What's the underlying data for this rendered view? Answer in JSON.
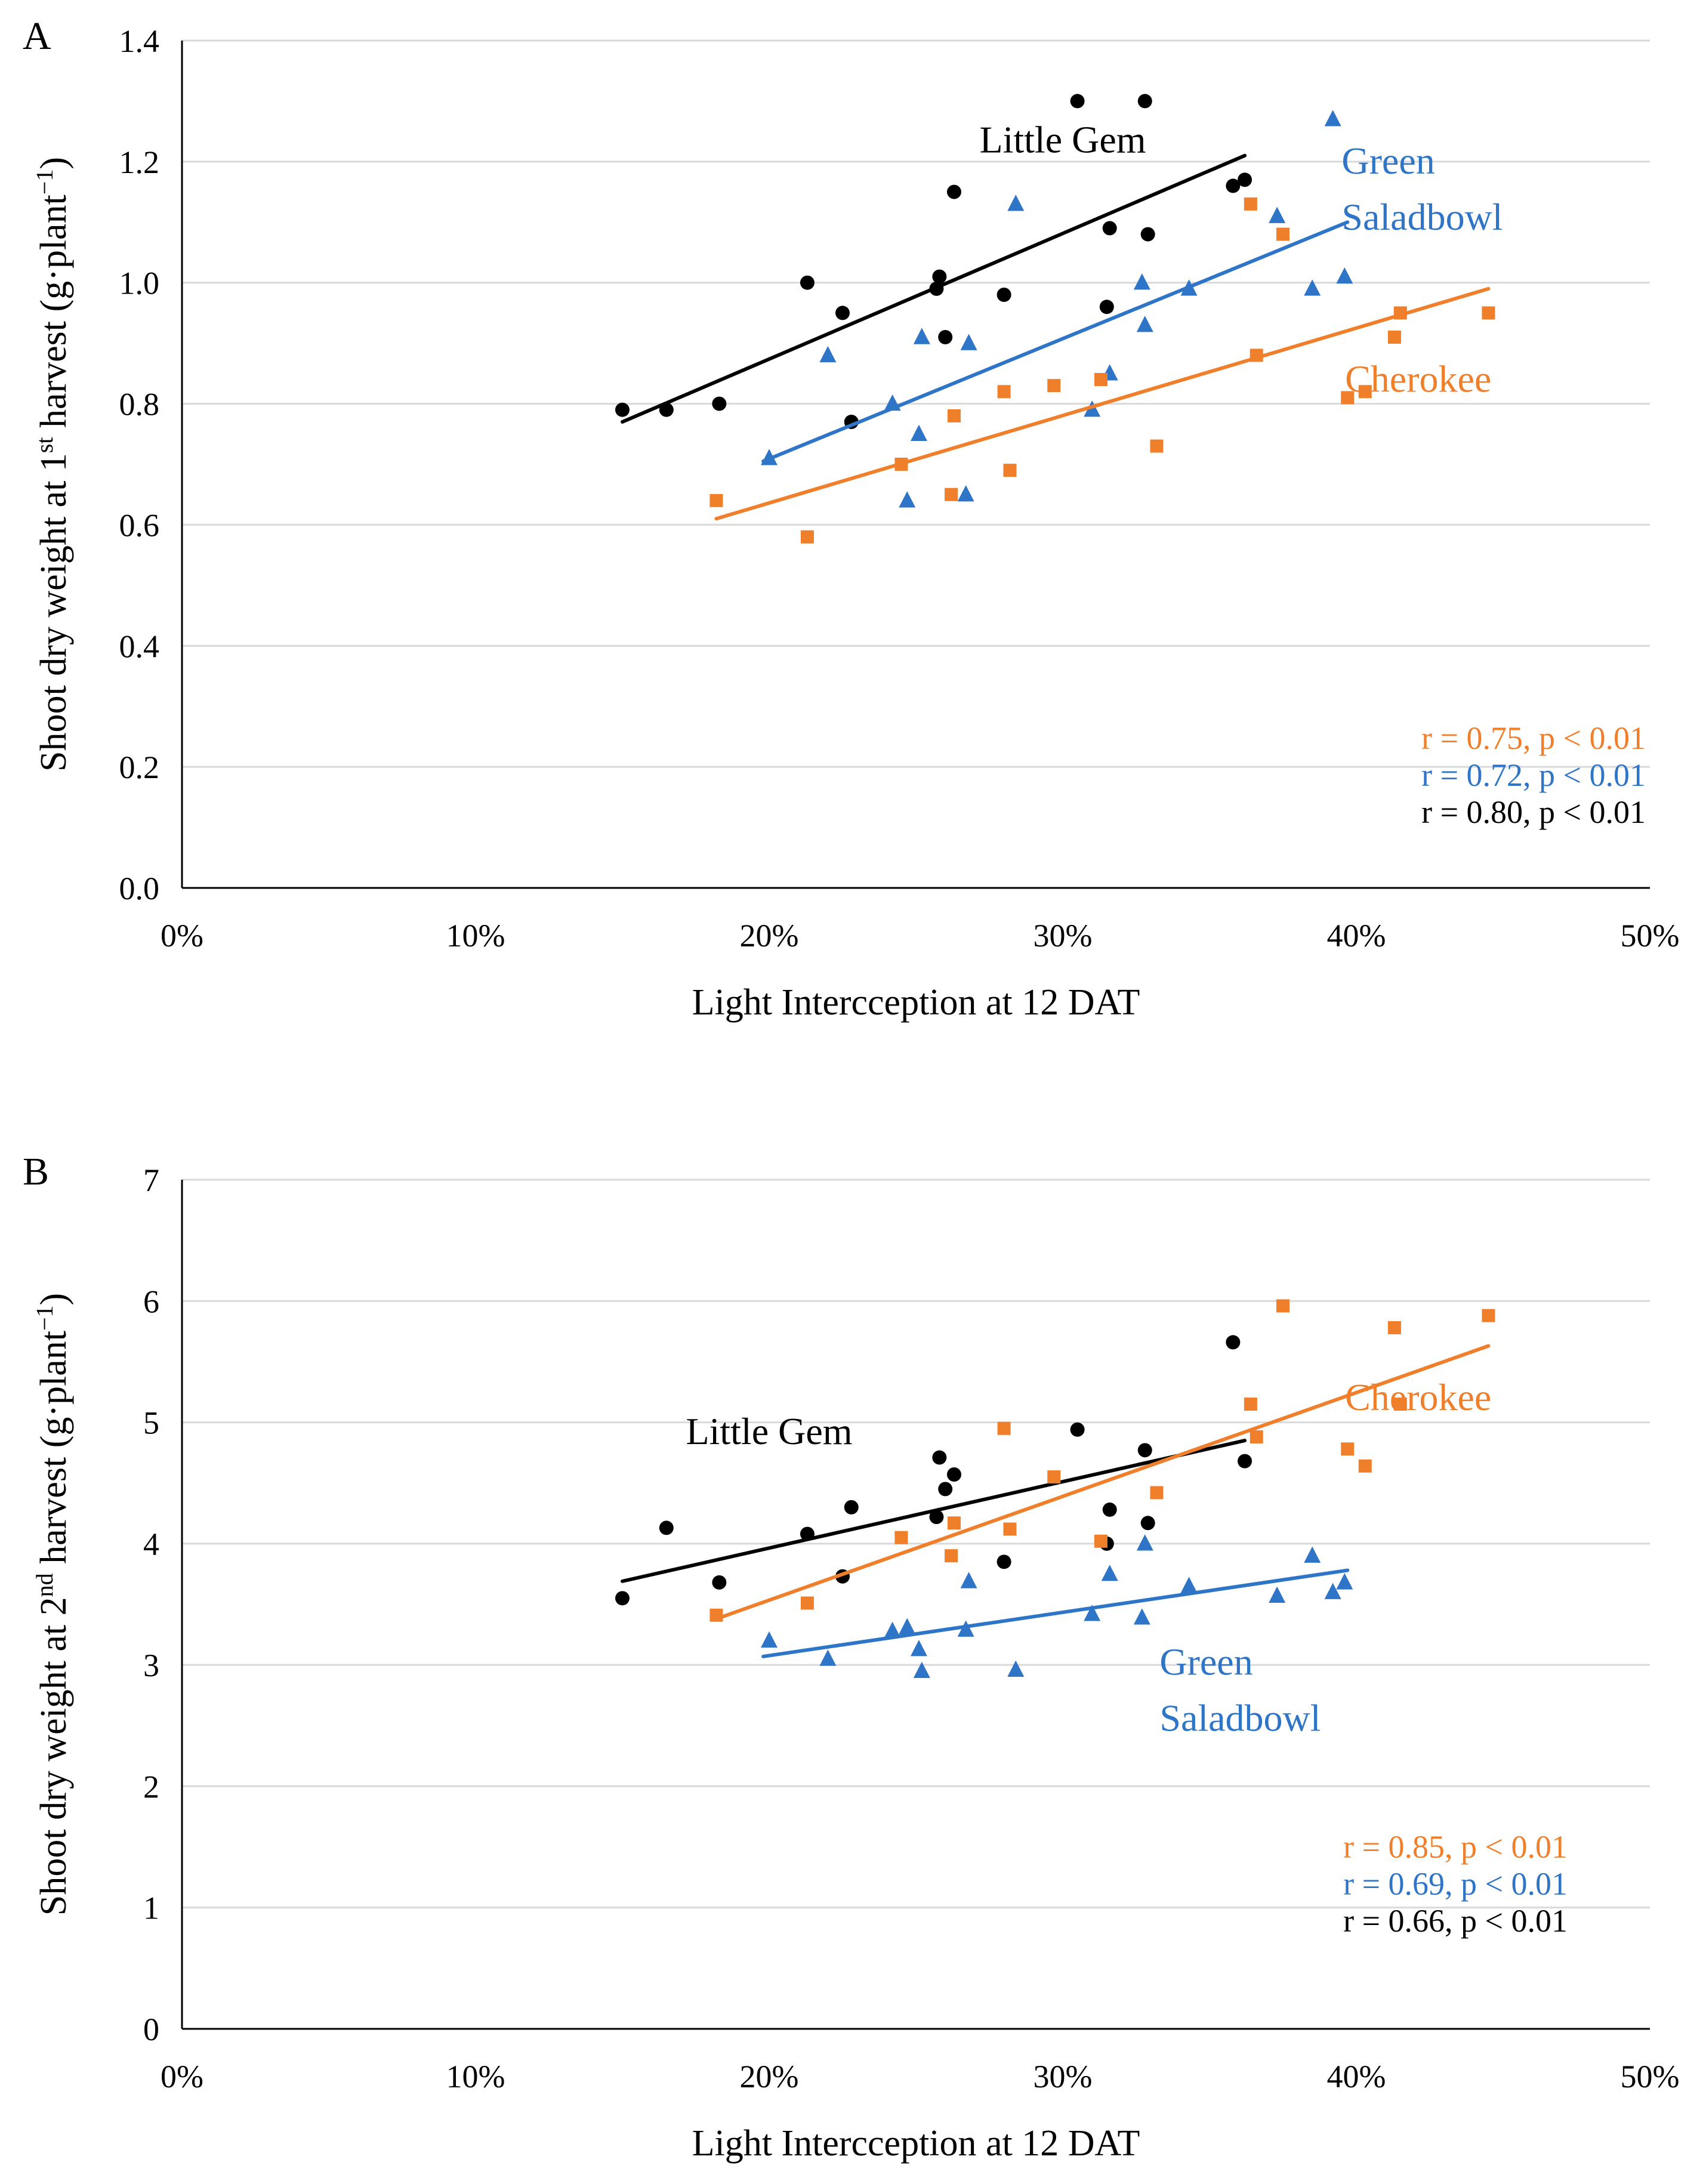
{
  "chart_data": [
    {
      "panel_label": "A",
      "type": "scatter",
      "xlabel": "Light Intercception  at 12 DAT",
      "ylabel": {
        "pre": "Shoot dry weight at 1",
        "sup1": "st",
        "mid": " harvest (g·plant",
        "sup2": "−1",
        "post": ")"
      },
      "xlim": [
        0,
        0.5
      ],
      "ylim": [
        0,
        1.4
      ],
      "xticks": [
        0,
        0.1,
        0.2,
        0.3,
        0.4,
        0.5
      ],
      "xtick_labels": [
        "0%",
        "10%",
        "20%",
        "30%",
        "40%",
        "50%"
      ],
      "yticks": [
        0,
        0.2,
        0.4,
        0.6,
        0.8,
        1.0,
        1.2,
        1.4
      ],
      "ytick_labels": [
        "0.0",
        "0.2",
        "0.4",
        "0.6",
        "0.8",
        "1.0",
        "1.2",
        "1.4"
      ],
      "grid": true,
      "series": [
        {
          "name": "Little Gem",
          "label_lines": [
            "Little Gem"
          ],
          "label_at": [
            0.3,
            1.215
          ],
          "label_anchor": "middle",
          "color": "#000000",
          "marker": "circle",
          "stat": "r = 0.80, p < 0.01",
          "points": [
            [
              0.15,
              0.79
            ],
            [
              0.165,
              0.79
            ],
            [
              0.183,
              0.8
            ],
            [
              0.213,
              1.0
            ],
            [
              0.225,
              0.95
            ],
            [
              0.228,
              0.77
            ],
            [
              0.257,
              0.99
            ],
            [
              0.258,
              1.01
            ],
            [
              0.26,
              0.91
            ],
            [
              0.263,
              1.15
            ],
            [
              0.28,
              0.98
            ],
            [
              0.305,
              1.3
            ],
            [
              0.315,
              0.96
            ],
            [
              0.316,
              1.09
            ],
            [
              0.328,
              1.3
            ],
            [
              0.329,
              1.08
            ],
            [
              0.358,
              1.16
            ],
            [
              0.362,
              1.17
            ]
          ],
          "trend": [
            [
              0.15,
              0.77
            ],
            [
              0.362,
              1.21
            ]
          ]
        },
        {
          "name": "Green Saladbowl",
          "label_lines": [
            "Green",
            "Saladbowl"
          ],
          "label_at": [
            0.395,
            1.18
          ],
          "label_anchor": "start",
          "color": "#2E75C8",
          "marker": "triangle",
          "stat": "r = 0.72, p < 0.01",
          "points": [
            [
              0.2,
              0.71
            ],
            [
              0.22,
              0.88
            ],
            [
              0.242,
              0.8
            ],
            [
              0.247,
              0.64
            ],
            [
              0.251,
              0.75
            ],
            [
              0.252,
              0.91
            ],
            [
              0.267,
              0.65
            ],
            [
              0.268,
              0.9
            ],
            [
              0.284,
              1.13
            ],
            [
              0.31,
              0.79
            ],
            [
              0.316,
              0.85
            ],
            [
              0.327,
              1.0
            ],
            [
              0.328,
              0.93
            ],
            [
              0.343,
              0.99
            ],
            [
              0.373,
              1.11
            ],
            [
              0.385,
              0.99
            ],
            [
              0.392,
              1.27
            ],
            [
              0.396,
              1.01
            ]
          ],
          "trend": [
            [
              0.198,
              0.705
            ],
            [
              0.397,
              1.1
            ]
          ]
        },
        {
          "name": "Cherokee",
          "label_lines": [
            "Cherokee"
          ],
          "label_at": [
            0.446,
            0.82
          ],
          "label_anchor": "end",
          "color": "#F07F2C",
          "marker": "square",
          "stat": "r = 0.75, p < 0.01",
          "points": [
            [
              0.182,
              0.64
            ],
            [
              0.213,
              0.58
            ],
            [
              0.245,
              0.7
            ],
            [
              0.262,
              0.65
            ],
            [
              0.263,
              0.78
            ],
            [
              0.28,
              0.82
            ],
            [
              0.282,
              0.69
            ],
            [
              0.297,
              0.83
            ],
            [
              0.313,
              0.84
            ],
            [
              0.332,
              0.73
            ],
            [
              0.364,
              1.13
            ],
            [
              0.366,
              0.88
            ],
            [
              0.375,
              1.08
            ],
            [
              0.397,
              0.81
            ],
            [
              0.403,
              0.82
            ],
            [
              0.413,
              0.91
            ],
            [
              0.415,
              0.95
            ],
            [
              0.445,
              0.95
            ]
          ],
          "trend": [
            [
              0.182,
              0.61
            ],
            [
              0.445,
              0.99
            ]
          ]
        }
      ]
    },
    {
      "panel_label": "B",
      "type": "scatter",
      "xlabel": "Light Intercception  at 12 DAT",
      "ylabel": {
        "pre": "Shoot dry weight at 2",
        "sup1": "nd",
        "mid": " harvest (g·plant",
        "sup2": "−1",
        "post": ")"
      },
      "xlim": [
        0,
        0.5
      ],
      "ylim": [
        0,
        7
      ],
      "xticks": [
        0,
        0.1,
        0.2,
        0.3,
        0.4,
        0.5
      ],
      "xtick_labels": [
        "0%",
        "10%",
        "20%",
        "30%",
        "40%",
        "50%"
      ],
      "yticks": [
        0,
        1,
        2,
        3,
        4,
        5,
        6,
        7
      ],
      "ytick_labels": [
        "0",
        "1",
        "2",
        "3",
        "4",
        "5",
        "6",
        "7"
      ],
      "grid": true,
      "series": [
        {
          "name": "Little Gem",
          "label_lines": [
            "Little Gem"
          ],
          "label_at": [
            0.2,
            4.82
          ],
          "label_anchor": "middle",
          "color": "#000000",
          "marker": "circle",
          "stat": "r = 0.66, p < 0.01",
          "points": [
            [
              0.15,
              3.55
            ],
            [
              0.165,
              4.13
            ],
            [
              0.183,
              3.68
            ],
            [
              0.213,
              4.08
            ],
            [
              0.225,
              3.73
            ],
            [
              0.228,
              4.3
            ],
            [
              0.257,
              4.22
            ],
            [
              0.258,
              4.71
            ],
            [
              0.26,
              4.45
            ],
            [
              0.263,
              4.57
            ],
            [
              0.28,
              3.85
            ],
            [
              0.305,
              4.94
            ],
            [
              0.315,
              4.0
            ],
            [
              0.316,
              4.28
            ],
            [
              0.328,
              4.77
            ],
            [
              0.329,
              4.17
            ],
            [
              0.358,
              5.66
            ],
            [
              0.362,
              4.68
            ]
          ],
          "trend": [
            [
              0.15,
              3.69
            ],
            [
              0.362,
              4.85
            ]
          ]
        },
        {
          "name": "Green Saladbowl",
          "label_lines": [
            "Green",
            "Saladbowl"
          ],
          "label_at": [
            0.333,
            2.92
          ],
          "label_anchor": "start",
          "color": "#2E75C8",
          "marker": "triangle",
          "stat": "r = 0.69, p < 0.01",
          "points": [
            [
              0.2,
              3.2
            ],
            [
              0.22,
              3.05
            ],
            [
              0.242,
              3.28
            ],
            [
              0.247,
              3.31
            ],
            [
              0.251,
              3.13
            ],
            [
              0.252,
              2.95
            ],
            [
              0.267,
              3.29
            ],
            [
              0.268,
              3.69
            ],
            [
              0.284,
              2.96
            ],
            [
              0.31,
              3.42
            ],
            [
              0.316,
              3.75
            ],
            [
              0.327,
              3.39
            ],
            [
              0.328,
              4.0
            ],
            [
              0.343,
              3.65
            ],
            [
              0.373,
              3.57
            ],
            [
              0.385,
              3.9
            ],
            [
              0.392,
              3.6
            ],
            [
              0.396,
              3.68
            ]
          ],
          "trend": [
            [
              0.198,
              3.07
            ],
            [
              0.397,
              3.78
            ]
          ]
        },
        {
          "name": "Cherokee",
          "label_lines": [
            "Cherokee"
          ],
          "label_at": [
            0.446,
            5.1
          ],
          "label_anchor": "end",
          "color": "#F07F2C",
          "marker": "square",
          "stat": "r = 0.85, p < 0.01",
          "points": [
            [
              0.182,
              3.41
            ],
            [
              0.213,
              3.51
            ],
            [
              0.245,
              4.05
            ],
            [
              0.262,
              3.9
            ],
            [
              0.263,
              4.17
            ],
            [
              0.28,
              4.95
            ],
            [
              0.282,
              4.12
            ],
            [
              0.297,
              4.55
            ],
            [
              0.313,
              4.02
            ],
            [
              0.332,
              4.42
            ],
            [
              0.364,
              5.15
            ],
            [
              0.366,
              4.88
            ],
            [
              0.375,
              5.96
            ],
            [
              0.397,
              4.78
            ],
            [
              0.403,
              4.64
            ],
            [
              0.413,
              5.78
            ],
            [
              0.415,
              5.15
            ],
            [
              0.445,
              5.88
            ]
          ],
          "trend": [
            [
              0.182,
              3.38
            ],
            [
              0.445,
              5.63
            ]
          ]
        }
      ]
    }
  ]
}
